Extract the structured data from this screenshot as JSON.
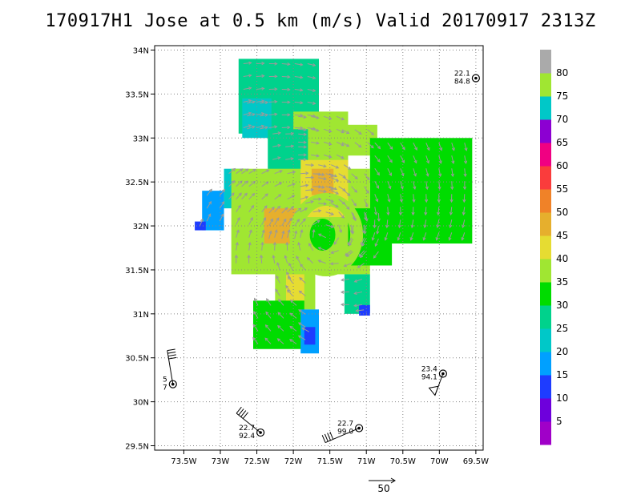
{
  "title": "170917H1 Jose at 0.5 km (m/s) Valid 20170917 2313Z",
  "chart_data": {
    "type": "heatmap",
    "title": "170917H1 Jose at 0.5 km (m/s) Valid 20170917 2313Z",
    "xlim": [
      -73.9,
      -69.4
    ],
    "ylim": [
      29.45,
      34.05
    ],
    "x_ticks": [
      {
        "value": -73.5,
        "label": "73.5W"
      },
      {
        "value": -73.0,
        "label": "73W"
      },
      {
        "value": -72.5,
        "label": "72.5W"
      },
      {
        "value": -72.0,
        "label": "72W"
      },
      {
        "value": -71.5,
        "label": "71.5W"
      },
      {
        "value": -71.0,
        "label": "71W"
      },
      {
        "value": -70.5,
        "label": "70.5W"
      },
      {
        "value": -70.0,
        "label": "70W"
      },
      {
        "value": -69.5,
        "label": "69.5W"
      }
    ],
    "y_ticks": [
      {
        "value": 29.5,
        "label": "29.5N"
      },
      {
        "value": 30.0,
        "label": "30N"
      },
      {
        "value": 30.5,
        "label": "30.5N"
      },
      {
        "value": 31.0,
        "label": "31N"
      },
      {
        "value": 31.5,
        "label": "31.5N"
      },
      {
        "value": 32.0,
        "label": "32N"
      },
      {
        "value": 32.5,
        "label": "32.5N"
      },
      {
        "value": 33.0,
        "label": "33N"
      },
      {
        "value": 33.5,
        "label": "33.5N"
      },
      {
        "value": 34.0,
        "label": "34N"
      }
    ],
    "grid": true,
    "grid_style": "dotted",
    "storm_center": {
      "lon": -71.55,
      "lat": 31.9
    },
    "wind_field_regions": [
      {
        "level": 25,
        "lon": [
          -72.75,
          -71.65
        ],
        "lat": [
          33.05,
          33.9
        ]
      },
      {
        "level": 20,
        "lon": [
          -72.7,
          -72.3
        ],
        "lat": [
          33.0,
          33.45
        ]
      },
      {
        "level": 35,
        "lon": [
          -72.0,
          -71.25
        ],
        "lat": [
          32.65,
          33.3
        ]
      },
      {
        "level": 25,
        "lon": [
          -72.35,
          -71.8
        ],
        "lat": [
          32.6,
          33.1
        ]
      },
      {
        "level": 35,
        "lon": [
          -71.4,
          -70.85
        ],
        "lat": [
          32.8,
          33.15
        ]
      },
      {
        "level": 30,
        "lon": [
          -70.95,
          -69.55
        ],
        "lat": [
          31.8,
          33.0
        ]
      },
      {
        "level": 20,
        "lon": [
          -72.95,
          -72.65
        ],
        "lat": [
          32.2,
          32.65
        ]
      },
      {
        "level": 15,
        "lon": [
          -73.25,
          -72.95
        ],
        "lat": [
          31.95,
          32.4
        ]
      },
      {
        "level": 10,
        "lon": [
          -73.35,
          -73.2
        ],
        "lat": [
          31.95,
          32.05
        ]
      },
      {
        "level": 35,
        "lon": [
          -72.85,
          -70.95
        ],
        "lat": [
          31.45,
          32.65
        ]
      },
      {
        "level": 40,
        "lon": [
          -71.9,
          -71.25
        ],
        "lat": [
          32.1,
          32.75
        ]
      },
      {
        "level": 45,
        "lon": [
          -72.4,
          -71.9
        ],
        "lat": [
          31.8,
          32.2
        ]
      },
      {
        "level": 45,
        "lon": [
          -71.75,
          -71.45
        ],
        "lat": [
          32.35,
          32.65
        ]
      },
      {
        "level": 30,
        "lon": [
          -71.25,
          -70.65
        ],
        "lat": [
          31.55,
          32.2
        ]
      },
      {
        "level": 35,
        "lon": [
          -72.25,
          -71.7
        ],
        "lat": [
          31.05,
          31.55
        ]
      },
      {
        "level": 40,
        "lon": [
          -72.1,
          -71.85
        ],
        "lat": [
          31.15,
          31.45
        ]
      },
      {
        "level": 30,
        "lon": [
          -72.55,
          -71.85
        ],
        "lat": [
          30.6,
          31.15
        ]
      },
      {
        "level": 25,
        "lon": [
          -71.3,
          -70.95
        ],
        "lat": [
          31.0,
          31.45
        ]
      },
      {
        "level": 10,
        "lon": [
          -71.1,
          -70.95
        ],
        "lat": [
          30.98,
          31.1
        ]
      },
      {
        "level": 15,
        "lon": [
          -71.9,
          -71.65
        ],
        "lat": [
          30.55,
          31.05
        ]
      },
      {
        "level": 10,
        "lon": [
          -71.85,
          -71.7
        ],
        "lat": [
          30.65,
          30.85
        ]
      }
    ],
    "calm_eye": {
      "lon": -71.6,
      "lat": 31.9,
      "level": 30
    },
    "inner_ring": {
      "lon": -71.55,
      "lat": 31.9,
      "level": 35
    },
    "stations": [
      {
        "lon": -73.65,
        "lat": 30.2,
        "top": "5",
        "bottom": "7",
        "barb": "ne"
      },
      {
        "lon": -72.45,
        "lat": 29.65,
        "top": "22.7",
        "bottom": "92.4",
        "barb": "nw"
      },
      {
        "lon": -71.1,
        "lat": 29.7,
        "top": "22.7",
        "bottom": "99.0",
        "barb": "sw"
      },
      {
        "lon": -69.95,
        "lat": 30.32,
        "top": "23.4",
        "bottom": "94.1",
        "barb": "s"
      },
      {
        "lon": -69.5,
        "lat": 33.68,
        "top": "22.1",
        "bottom": "84.8",
        "barb": "none"
      }
    ],
    "reference_vector_label": "50",
    "colorbar": {
      "levels": [
        5,
        10,
        15,
        20,
        25,
        30,
        35,
        40,
        45,
        50,
        55,
        60,
        65,
        70,
        75,
        80
      ],
      "colors": [
        "#a000c8",
        "#6e00dc",
        "#1e3cff",
        "#00a0ff",
        "#00c8c8",
        "#00d28c",
        "#00dc00",
        "#a0e632",
        "#e6dc32",
        "#e6af2d",
        "#f08228",
        "#fa3c3c",
        "#f00082",
        "#8c00d2",
        "#00c8c8",
        "#a0e632",
        "#aaaaaa"
      ]
    }
  }
}
